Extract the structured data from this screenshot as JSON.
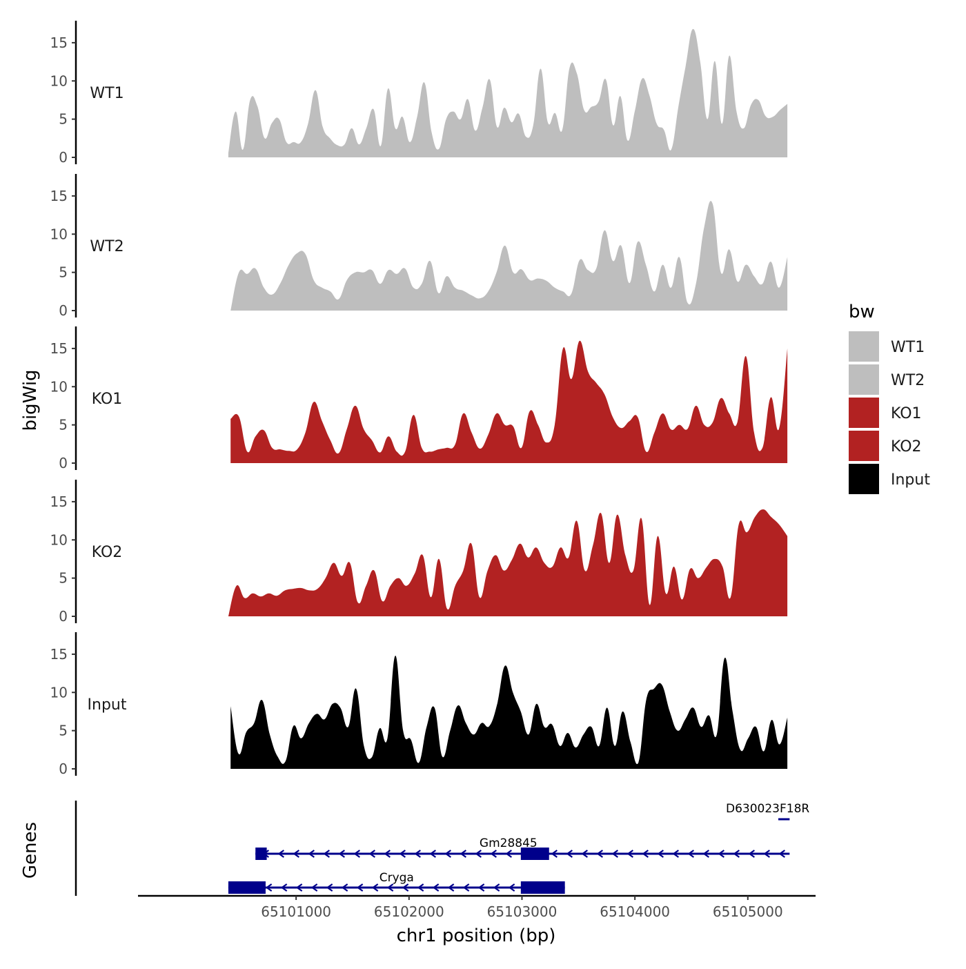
{
  "chart_data": {
    "type": "area",
    "title": "",
    "xlabel": "chr1 position (bp)",
    "ylabel": "bigWig",
    "genes_label": "Genes",
    "xlim": [
      65099600,
      65105600
    ],
    "ylim": [
      0,
      17.7
    ],
    "x_ticks": [
      65101000,
      65102000,
      65103000,
      65104000,
      65105000
    ],
    "x_tick_labels": [
      "65101000",
      "65102000",
      "65103000",
      "65104000",
      "65105000"
    ],
    "y_ticks": [
      0,
      5,
      10,
      15
    ],
    "y_tick_labels": [
      "0",
      "5",
      "10",
      "15"
    ],
    "legend": {
      "title": "bw",
      "position": "right",
      "entries": [
        {
          "label": "WT1",
          "color": "#BEBEBE"
        },
        {
          "label": "WT2",
          "color": "#BEBEBE"
        },
        {
          "label": "KO1",
          "color": "#B22222"
        },
        {
          "label": "KO2",
          "color": "#B22222"
        },
        {
          "label": "Input",
          "color": "#000000"
        }
      ]
    },
    "x_start": 65100400,
    "x_step": 100,
    "series": [
      {
        "name": "WT1",
        "color": "#BEBEBE",
        "x_start": 65100400,
        "x_end": 65105350,
        "values": [
          0.5,
          6,
          1,
          7.5,
          6.7,
          2.5,
          4.5,
          5,
          2,
          2,
          2,
          4.5,
          8.8,
          4,
          2.5,
          1.6,
          1.7,
          3.8,
          1.7,
          3.8,
          6.3,
          1.5,
          9,
          3.8,
          5.3,
          2,
          5.3,
          9.8,
          3.3,
          1.1,
          5,
          6,
          5,
          7.6,
          3.5,
          6.5,
          10.2,
          4,
          6.5,
          4.6,
          5.7,
          2.7,
          4.2,
          11.6,
          4.6,
          5.8,
          3.6,
          11.7,
          11,
          6.2,
          6.6,
          7.3,
          10.2,
          4.2,
          8,
          2.2,
          6.1,
          10.3,
          8.1,
          4.4,
          3.6,
          1,
          6.7,
          12,
          16.8,
          12.5,
          5,
          12.6,
          4.4,
          13.3,
          6,
          3.8,
          6.9,
          7.5,
          5.4,
          5.3,
          6.2,
          7
        ]
      },
      {
        "name": "WT2",
        "color": "#BEBEBE",
        "x_start": 65100420,
        "x_end": 65105350,
        "values": [
          0,
          5,
          4.8,
          5.5,
          3,
          2.1,
          3.6,
          6,
          7.5,
          7.4,
          4,
          3,
          2.5,
          1.5,
          4,
          5,
          5,
          5.3,
          3.5,
          5.3,
          4.8,
          5.5,
          3,
          3.5,
          6.5,
          2.3,
          4.5,
          3,
          2.6,
          2,
          1.6,
          2.5,
          5,
          8.5,
          5,
          5.4,
          4,
          4.2,
          3.9,
          3,
          2.5,
          2.2,
          6.6,
          5.3,
          5.5,
          10.5,
          6.5,
          8.5,
          3.6,
          9,
          5.9,
          2.5,
          6,
          3,
          7,
          1,
          3.5,
          11,
          14,
          5,
          8,
          3.8,
          6,
          4.5,
          3.5,
          6.4,
          3,
          7
        ]
      },
      {
        "name": "KO1",
        "color": "#B22222",
        "x_start": 65100420,
        "x_end": 65105350,
        "values": [
          5.8,
          6.1,
          1.5,
          3.5,
          4.3,
          2,
          1.8,
          1.6,
          1.8,
          4,
          8,
          5.5,
          3,
          1.3,
          4.5,
          7.5,
          4.5,
          3,
          1.4,
          3.5,
          1.5,
          1.5,
          6.3,
          2,
          1.5,
          1.8,
          2,
          2.4,
          6.5,
          4,
          1.9,
          3.7,
          6.5,
          5,
          4.8,
          2,
          6.8,
          5,
          2.7,
          5,
          15,
          11,
          16,
          12,
          10.5,
          9,
          6,
          4.6,
          5.5,
          6,
          1.5,
          4,
          6.5,
          4.4,
          5,
          4.5,
          7.5,
          5,
          5.3,
          8.5,
          6.5,
          5.4,
          14,
          4,
          2,
          8.6,
          4.5,
          15
        ]
      },
      {
        "name": "KO2",
        "color": "#B22222",
        "x_start": 65100400,
        "x_end": 65105350,
        "values": [
          0,
          4,
          2.4,
          3,
          2.6,
          3,
          2.7,
          3.4,
          3.6,
          3.7,
          3.4,
          3.6,
          5,
          7,
          5.3,
          7,
          1.8,
          4,
          6,
          2,
          4,
          5,
          4,
          5.6,
          8,
          2.5,
          7.5,
          1,
          4,
          6,
          9.5,
          2.5,
          6,
          8,
          6,
          7.4,
          9.5,
          7.7,
          9,
          7,
          6.5,
          9,
          7.7,
          12.5,
          6,
          9.3,
          13.5,
          7,
          13.3,
          8,
          6,
          12.8,
          1.5,
          10.5,
          3,
          6.5,
          2.2,
          6.2,
          5,
          6.4,
          7.5,
          6.5,
          2.5,
          12,
          11,
          13,
          14,
          13,
          12,
          10.5
        ]
      },
      {
        "name": "Input",
        "color": "#000000",
        "x_start": 65100420,
        "x_end": 65105350,
        "values": [
          8.2,
          2,
          4.8,
          6,
          9,
          4.5,
          1.6,
          1,
          5.6,
          4,
          6,
          7.2,
          6.5,
          8.5,
          8,
          5.5,
          10.5,
          3,
          1.5,
          5.3,
          4,
          14.8,
          5,
          3.8,
          0.8,
          5.5,
          8,
          1.6,
          5,
          8.3,
          6,
          4.5,
          6,
          5.6,
          8.5,
          13.5,
          10,
          7.5,
          4.5,
          8.5,
          5.5,
          5.8,
          3,
          4.7,
          2.8,
          4.5,
          5.5,
          3,
          8,
          3,
          7.5,
          3.5,
          0.8,
          9,
          10.5,
          11,
          7.5,
          5,
          6.5,
          8,
          5.5,
          7,
          4.5,
          14.5,
          7.6,
          2.5,
          4,
          5.5,
          2.3,
          6.4,
          3.2,
          6.7
        ]
      }
    ],
    "genes": [
      {
        "name": "D630023F18R",
        "display": "D630023F18R",
        "strand": "-",
        "start": 65105270,
        "end": 65105370,
        "exons": []
      },
      {
        "name": "Gm28845",
        "display": "Gm28845",
        "strand": "-",
        "start": 65100640,
        "end": 65105370,
        "exons": [
          [
            65100640,
            65100740
          ],
          [
            65102990,
            65103240
          ]
        ]
      },
      {
        "name": "Cryga",
        "display": "Cryga",
        "strand": "-",
        "start": 65100400,
        "end": 65103380,
        "exons": [
          [
            65100400,
            65100730
          ],
          [
            65102990,
            65103380
          ]
        ]
      }
    ]
  }
}
